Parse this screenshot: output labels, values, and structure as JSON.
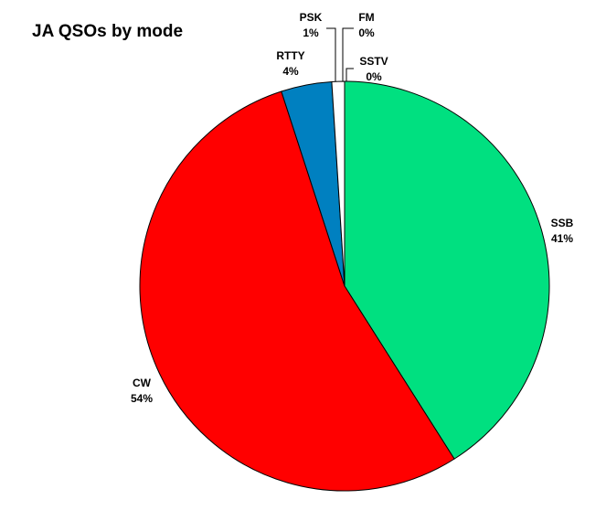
{
  "chart_data": {
    "type": "pie",
    "title": "JA QSOs by mode",
    "categories": [
      "SSB",
      "CW",
      "RTTY",
      "PSK",
      "FM",
      "SSTV"
    ],
    "values": [
      41,
      54,
      4,
      1,
      0,
      0
    ],
    "value_labels": [
      "41%",
      "54%",
      "4%",
      "1%",
      "0%",
      "0%"
    ],
    "colors": [
      "#00e080",
      "#ff0000",
      "#0080c0",
      "#ffffff",
      "#ffff00",
      "#c0c0c0"
    ]
  }
}
